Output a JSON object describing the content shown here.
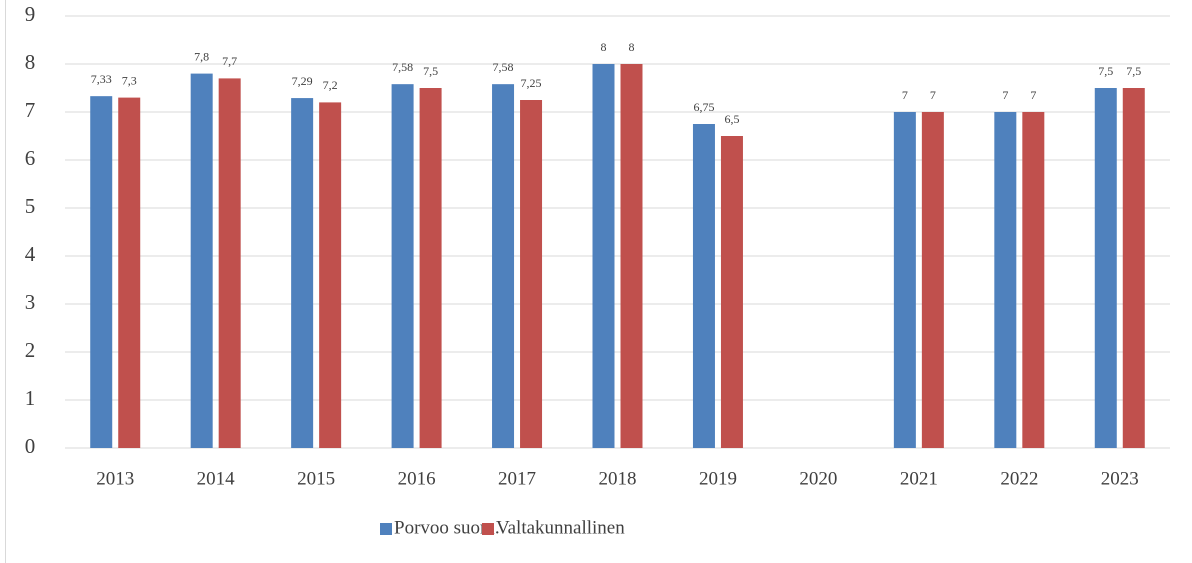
{
  "chart_data": {
    "type": "bar",
    "categories": [
      "2013",
      "2014",
      "2015",
      "2016",
      "2017",
      "2018",
      "2019",
      "2020",
      "2021",
      "2022",
      "2023"
    ],
    "series": [
      {
        "name": "Porvoo suom.",
        "color": "#4f81bd",
        "values": [
          7.33,
          7.8,
          7.29,
          7.58,
          7.58,
          8,
          6.75,
          null,
          7,
          7,
          7.5
        ],
        "value_labels": [
          "7,33",
          "7,8",
          "7,29",
          "7,58",
          "7,58",
          "8",
          "6,75",
          null,
          "7",
          "7",
          "7,5"
        ]
      },
      {
        "name": "Valtakunnallinen",
        "color": "#c0504d",
        "values": [
          7.3,
          7.7,
          7.2,
          7.5,
          7.25,
          8,
          6.5,
          null,
          7,
          7,
          7.5
        ],
        "value_labels": [
          "7,3",
          "7,7",
          "7,2",
          "7,5",
          "7,25",
          "8",
          "6,5",
          null,
          "7",
          "7",
          "7,5"
        ]
      }
    ],
    "ylim": [
      0,
      9
    ],
    "yticks": [
      0,
      1,
      2,
      3,
      4,
      5,
      6,
      7,
      8,
      9
    ],
    "grid": true,
    "legend": "bottom"
  }
}
